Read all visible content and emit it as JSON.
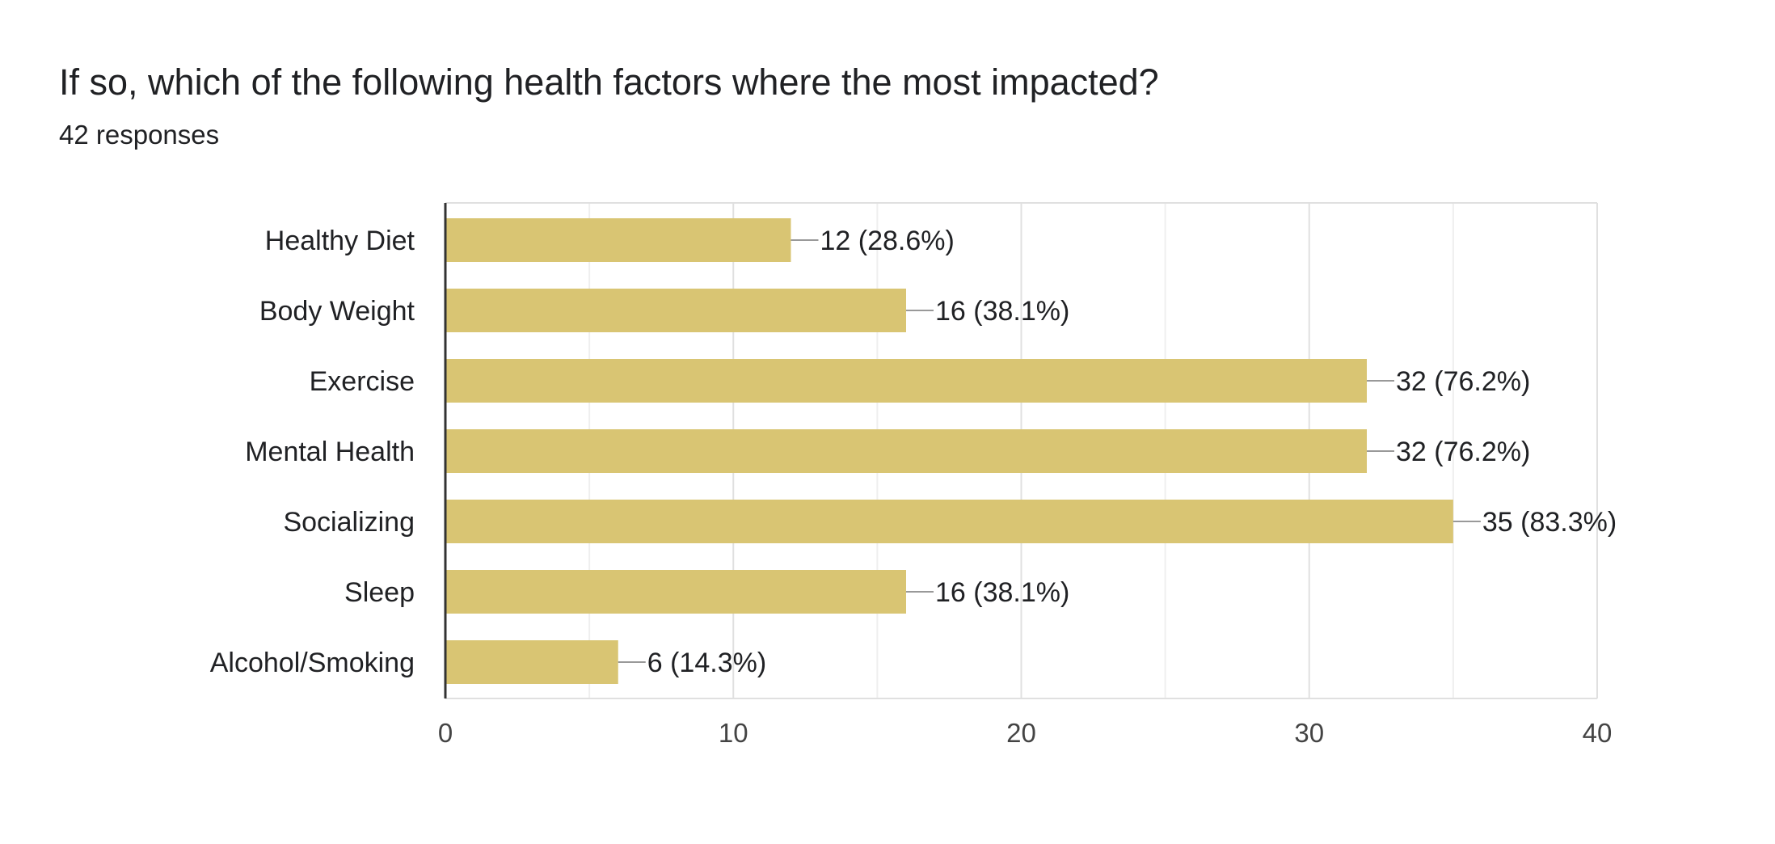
{
  "question": {
    "title": "If so, which of the following health factors where the most impacted?",
    "responses": "42 responses"
  },
  "chart_data": {
    "type": "bar",
    "orientation": "horizontal",
    "categories": [
      "Healthy Diet",
      "Body Weight",
      "Exercise",
      "Mental Health",
      "Socializing",
      "Sleep",
      "Alcohol/Smoking"
    ],
    "values": [
      12,
      16,
      32,
      32,
      35,
      16,
      6
    ],
    "data_labels": [
      "12 (28.6%)",
      "16 (38.1%)",
      "32 (76.2%)",
      "32 (76.2%)",
      "35 (83.3%)",
      "16 (38.1%)",
      "6 (14.3%)"
    ],
    "xlim": [
      0,
      40
    ],
    "x_ticks": [
      0,
      10,
      20,
      30,
      40
    ],
    "grid": true,
    "bar_color": "#d9c573",
    "legend": "none"
  }
}
